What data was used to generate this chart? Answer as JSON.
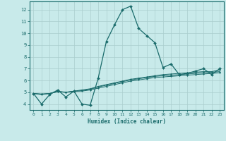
{
  "title": "",
  "xlabel": "Humidex (Indice chaleur)",
  "ylabel": "",
  "background_color": "#c8eaea",
  "grid_color": "#aacece",
  "line_color": "#1a6b6b",
  "xlim": [
    -0.5,
    23.5
  ],
  "ylim": [
    3.5,
    12.7
  ],
  "xticks": [
    0,
    1,
    2,
    3,
    4,
    5,
    6,
    7,
    8,
    9,
    10,
    11,
    12,
    13,
    14,
    15,
    16,
    17,
    18,
    19,
    20,
    21,
    22,
    23
  ],
  "yticks": [
    4,
    5,
    6,
    7,
    8,
    9,
    10,
    11,
    12
  ],
  "series": [
    [
      4.9,
      4.0,
      4.8,
      5.2,
      4.6,
      5.1,
      4.0,
      3.9,
      6.2,
      9.3,
      10.7,
      12.0,
      12.3,
      10.4,
      9.8,
      9.2,
      7.1,
      7.4,
      6.5,
      6.6,
      6.8,
      7.0,
      6.5,
      7.0
    ],
    [
      4.9,
      4.8,
      4.9,
      5.1,
      5.0,
      5.1,
      5.1,
      5.2,
      5.35,
      5.5,
      5.65,
      5.8,
      5.95,
      6.05,
      6.15,
      6.25,
      6.3,
      6.35,
      6.4,
      6.45,
      6.5,
      6.55,
      6.6,
      6.65
    ],
    [
      4.9,
      4.85,
      4.9,
      5.05,
      5.0,
      5.05,
      5.15,
      5.25,
      5.45,
      5.6,
      5.75,
      5.9,
      6.05,
      6.15,
      6.25,
      6.35,
      6.4,
      6.45,
      6.5,
      6.55,
      6.6,
      6.65,
      6.7,
      6.75
    ],
    [
      4.9,
      4.85,
      4.9,
      5.05,
      5.0,
      5.1,
      5.2,
      5.3,
      5.5,
      5.65,
      5.8,
      5.95,
      6.1,
      6.2,
      6.3,
      6.4,
      6.5,
      6.55,
      6.6,
      6.65,
      6.7,
      6.75,
      6.75,
      6.9
    ]
  ]
}
